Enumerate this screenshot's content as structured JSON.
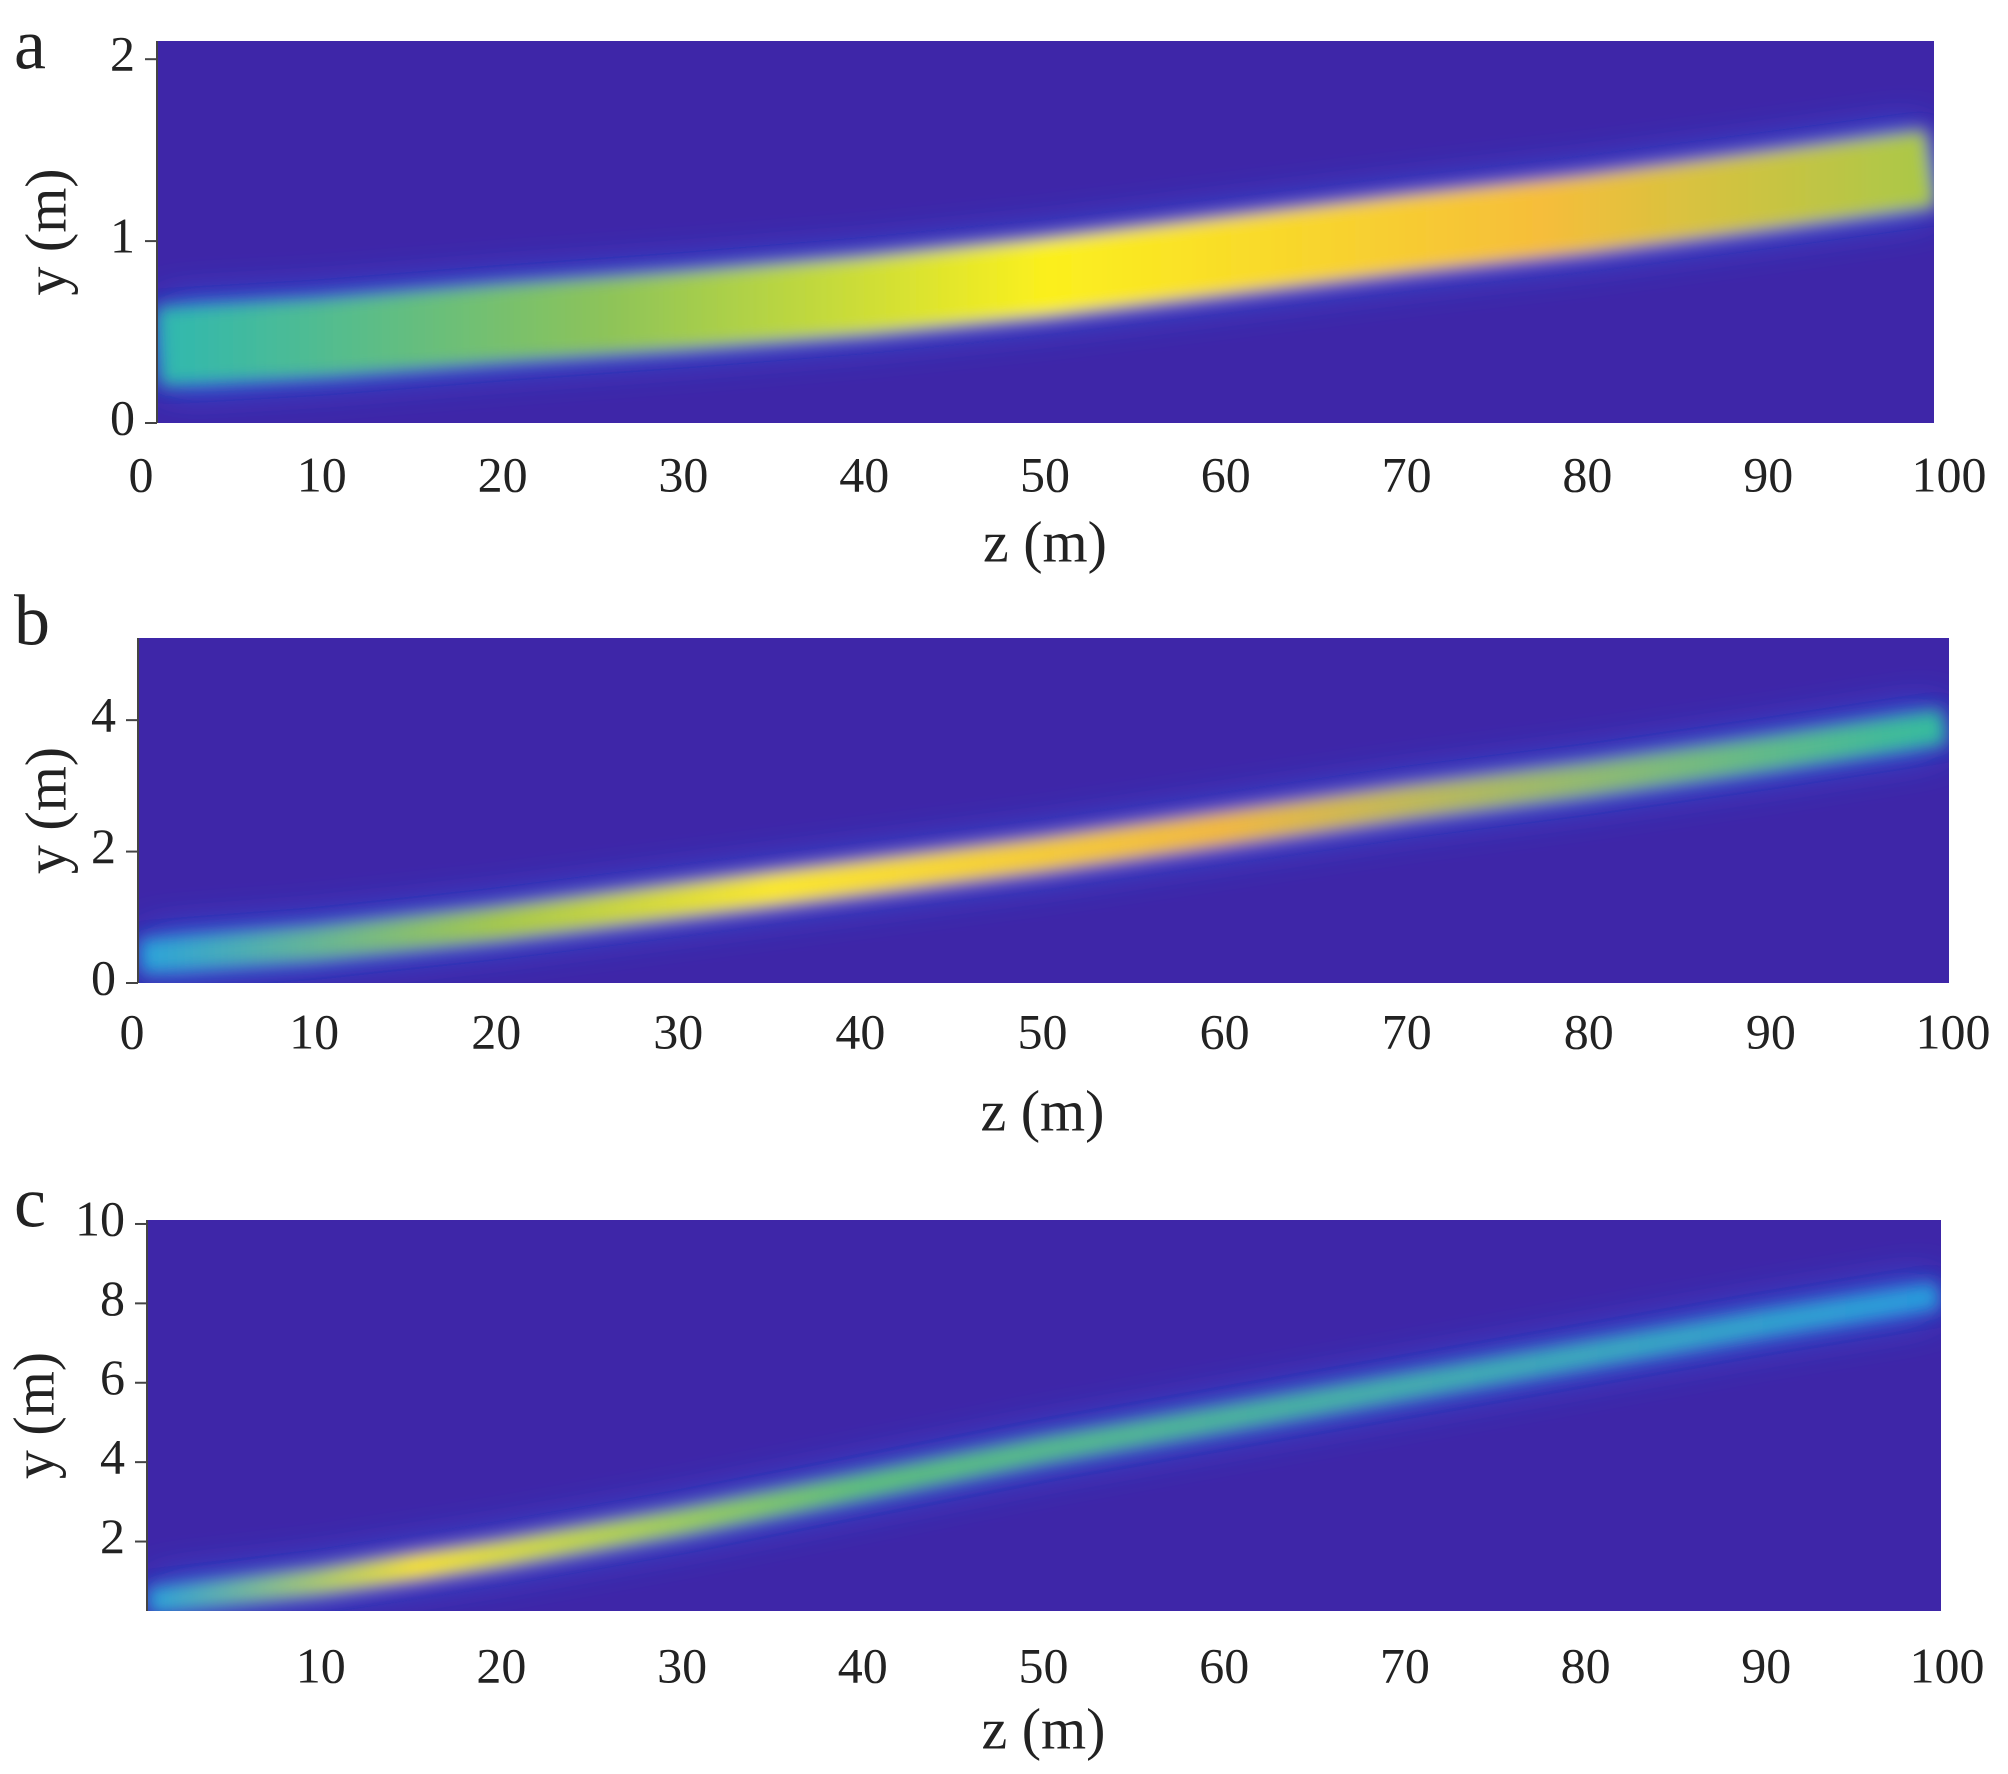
{
  "chart_data": [
    {
      "type": "heatmap",
      "panel_label": "a",
      "x_label": "z (m)",
      "y_label": "y (m)",
      "background": "#3e26a8",
      "xlim": [
        0,
        100
      ],
      "xticks": [
        0,
        10,
        20,
        30,
        40,
        50,
        60,
        70,
        80,
        90,
        100
      ],
      "ylim": [
        0,
        2.1
      ],
      "yticks": [
        0,
        1,
        2
      ],
      "x": [
        1,
        10,
        20,
        30,
        40,
        50,
        60,
        70,
        80,
        90,
        99
      ],
      "values": [
        0.42,
        0.47,
        0.55,
        0.62,
        0.7,
        0.8,
        0.92,
        1.04,
        1.15,
        1.28,
        1.4
      ]
    },
    {
      "type": "heatmap",
      "panel_label": "b",
      "x_label": "z (m)",
      "y_label": "y (m)",
      "background": "#3e26a8",
      "xlim": [
        0,
        100
      ],
      "xticks": [
        0,
        10,
        20,
        30,
        40,
        50,
        60,
        70,
        80,
        90,
        100
      ],
      "ylim": [
        0,
        5.25
      ],
      "yticks": [
        0,
        2,
        4
      ],
      "x": [
        0.5,
        10,
        20,
        30,
        40,
        50,
        60,
        70,
        80,
        90,
        99.5
      ],
      "values": [
        0.4,
        0.6,
        0.9,
        1.25,
        1.6,
        1.95,
        2.35,
        2.75,
        3.1,
        3.5,
        3.9
      ]
    },
    {
      "type": "heatmap",
      "panel_label": "c",
      "x_label": "z (m)",
      "y_label": "y (m)",
      "background": "#3e26a8",
      "xlim": [
        0,
        100
      ],
      "xticks": [
        10,
        20,
        30,
        40,
        50,
        60,
        70,
        80,
        90,
        100
      ],
      "ylim": [
        0.25,
        10.1
      ],
      "yticks": [
        2,
        4,
        6,
        8,
        10
      ],
      "x": [
        0.5,
        10,
        20,
        30,
        40,
        50,
        60,
        70,
        80,
        90,
        99.5
      ],
      "values": [
        0.5,
        1.0,
        1.7,
        2.5,
        3.4,
        4.3,
        5.1,
        5.9,
        6.7,
        7.5,
        8.2
      ]
    }
  ]
}
